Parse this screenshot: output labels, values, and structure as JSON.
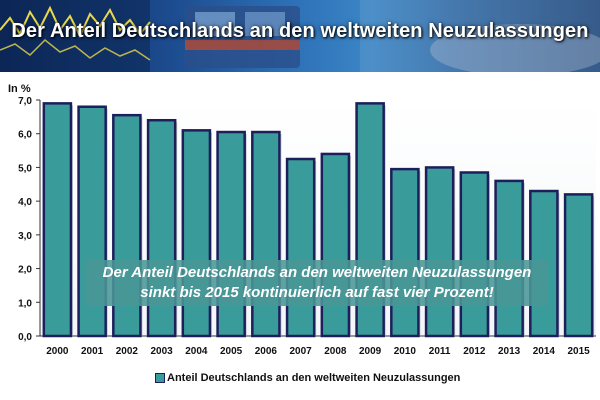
{
  "header": {
    "title": "Der Anteil Deutschlands an den weltweiten Neuzulassungen"
  },
  "callout": {
    "line1": "Der Anteil Deutschlands an den weltweiten Neuzulassungen",
    "line2": "sinkt bis 2015 kontinuierlich auf fast vier Prozent!"
  },
  "chart_data": {
    "type": "bar",
    "ylabel": "In %",
    "xlabel": "",
    "categories": [
      "2000",
      "2001",
      "2002",
      "2003",
      "2004",
      "2005",
      "2006",
      "2007",
      "2008",
      "2009",
      "2010",
      "2011",
      "2012",
      "2013",
      "2014",
      "2015"
    ],
    "series": [
      {
        "name": "Anteil Deutschlands an den weltweiten Neuzulassungen",
        "values": [
          6.9,
          6.8,
          6.55,
          6.4,
          6.1,
          6.05,
          6.05,
          5.25,
          5.4,
          6.9,
          4.95,
          5.0,
          4.85,
          4.6,
          4.3,
          4.2
        ]
      }
    ],
    "yticks": [
      "0,0",
      "1,0",
      "2,0",
      "3,0",
      "4,0",
      "5,0",
      "6,0",
      "7,0"
    ],
    "ylim": [
      0,
      7
    ],
    "grid": false,
    "legend_position": "bottom",
    "colors": {
      "bar_fill": "#3a9c9a",
      "bar_border": "#1d1f5c",
      "axis": "#333333",
      "plot_bg": "#ffffff"
    }
  }
}
